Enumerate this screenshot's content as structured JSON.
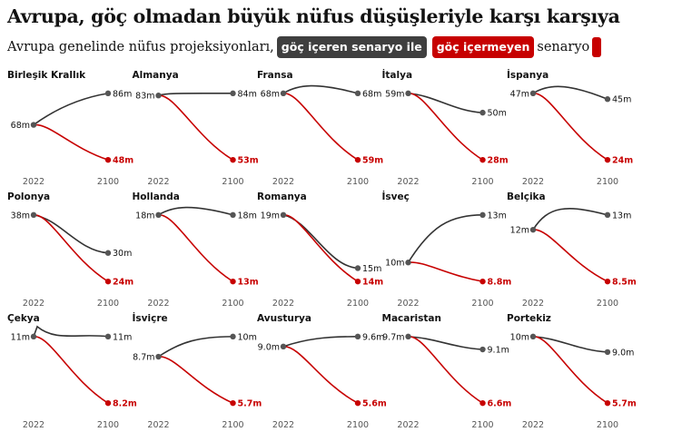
{
  "title": "Avrupa, göç olmadan büyük nüfus düşüşleriyle karşı karşıya",
  "subtitle": {
    "prefix": "Avrupa genelinde nüfus projeksiyonları,",
    "with_migration": "göç içeren senaryo ile",
    "without_migration": "göç içermeyen",
    "suffix": "senaryo"
  },
  "colors": {
    "with_migration": "#333333",
    "without_migration": "#c70000",
    "dark_pill": "#3f3f3f"
  },
  "chart_data": {
    "type": "line",
    "x": [
      2022,
      2100
    ],
    "x_tick_labels": [
      "2022",
      "2100"
    ],
    "series_names": [
      "göç içeren senaryo",
      "göç içermeyen senaryo"
    ],
    "panels": [
      {
        "country": "Birleşik Krallık",
        "start": 68,
        "start_label": "68m",
        "with": 86,
        "with_label": "86m",
        "without": 48,
        "without_label": "48m",
        "shape": "uk"
      },
      {
        "country": "Almanya",
        "start": 83,
        "start_label": "83m",
        "with": 84,
        "with_label": "84m",
        "without": 53,
        "without_label": "53m",
        "shape": "flat"
      },
      {
        "country": "Fransa",
        "start": 68,
        "start_label": "68m",
        "with": 68,
        "with_label": "68m",
        "without": 59,
        "without_label": "59m",
        "shape": "hump"
      },
      {
        "country": "İtalya",
        "start": 59,
        "start_label": "59m",
        "with": 50,
        "with_label": "50m",
        "without": 28,
        "without_label": "28m",
        "shape": "decline"
      },
      {
        "country": "İspanya",
        "start": 47,
        "start_label": "47m",
        "with": 45,
        "with_label": "45m",
        "without": 24,
        "without_label": "24m",
        "shape": "hump"
      },
      {
        "country": "Polonya",
        "start": 38,
        "start_label": "38m",
        "with": 30,
        "with_label": "30m",
        "without": 24,
        "without_label": "24m",
        "shape": "decline"
      },
      {
        "country": "Hollanda",
        "start": 18,
        "start_label": "18m",
        "with": 18,
        "with_label": "18m",
        "without": 13,
        "without_label": "13m",
        "shape": "hump"
      },
      {
        "country": "Romanya",
        "start": 19,
        "start_label": "19m",
        "with": 15,
        "with_label": "15m",
        "without": 14,
        "without_label": "14m",
        "shape": "decline"
      },
      {
        "country": "İsveç",
        "start": 10,
        "start_label": "10m",
        "with": 13,
        "with_label": "13m",
        "without": 8.8,
        "without_label": "8.8m",
        "shape": "rise"
      },
      {
        "country": "Belçika",
        "start": 12,
        "start_label": "12m",
        "with": 13,
        "with_label": "13m",
        "without": 8.5,
        "without_label": "8.5m",
        "shape": "hump"
      },
      {
        "country": "Çekya",
        "start": 11,
        "start_label": "11m",
        "with": 11,
        "with_label": "11m",
        "without": 8.2,
        "without_label": "8.2m",
        "shape": "spike"
      },
      {
        "country": "İsviçre",
        "start": 8.7,
        "start_label": "8.7m",
        "with": 10,
        "with_label": "10m",
        "without": 5.7,
        "without_label": "5.7m",
        "shape": "rise"
      },
      {
        "country": "Avusturya",
        "start": 9.0,
        "start_label": "9.0m",
        "with": 9.6,
        "with_label": "9.6m",
        "without": 5.6,
        "without_label": "5.6m",
        "shape": "rise"
      },
      {
        "country": "Macaristan",
        "start": 9.7,
        "start_label": "9.7m",
        "with": 9.1,
        "with_label": "9.1m",
        "without": 6.6,
        "without_label": "6.6m",
        "shape": "decline"
      },
      {
        "country": "Portekiz",
        "start": 10,
        "start_label": "10m",
        "with": 9.0,
        "with_label": "9.0m",
        "without": 5.7,
        "without_label": "5.7m",
        "shape": "decline"
      }
    ]
  }
}
